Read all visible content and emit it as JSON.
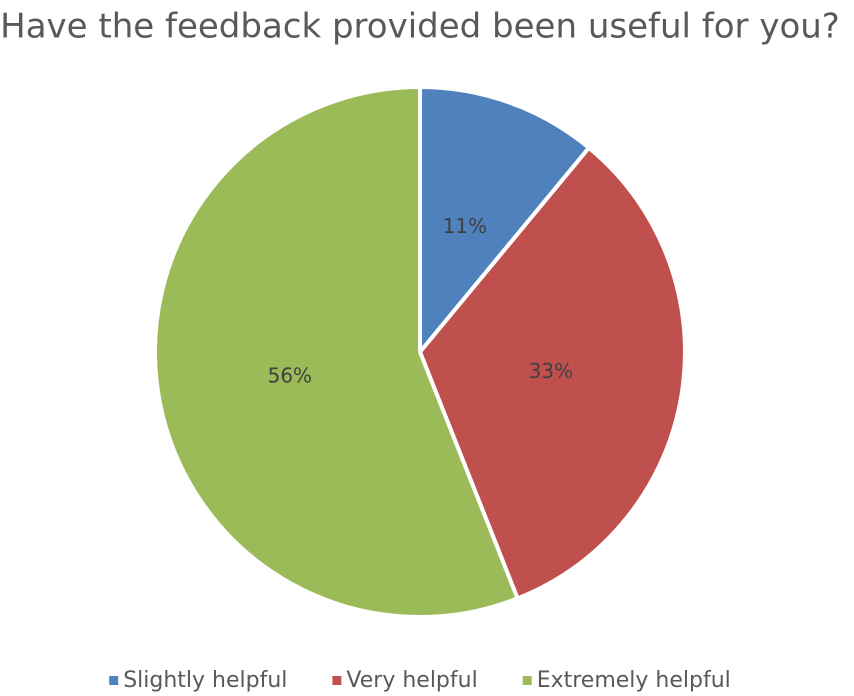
{
  "chart_data": {
    "type": "pie",
    "title": "Have the feedback provided been useful for you?",
    "categories": [
      "Slightly helpful",
      "Very helpful",
      "Extremely helpful"
    ],
    "values": [
      11,
      33,
      56
    ],
    "value_labels": [
      "11%",
      "33%",
      "56%"
    ],
    "colors": [
      "#4f81bd",
      "#c0504d",
      "#9bbb59"
    ],
    "legend": "bottom"
  }
}
